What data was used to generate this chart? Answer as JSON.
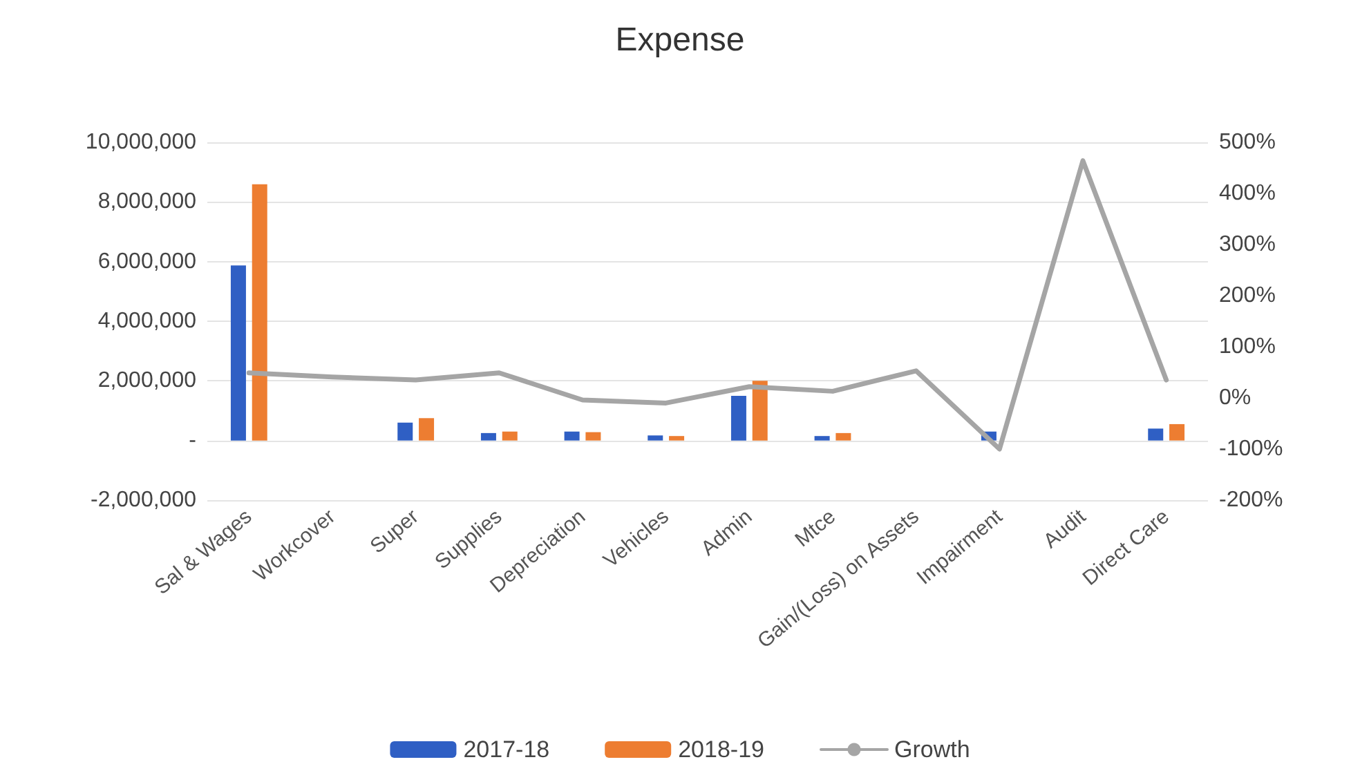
{
  "chart_data": {
    "type": "bar",
    "title": "Expense",
    "categories": [
      "Sal & Wages",
      "Workcover",
      "Super",
      "Supplies",
      "Depreciation",
      "Vehicles",
      "Admin",
      "Mtce",
      "Gain/(Loss) on Assets",
      "Impairment",
      "Audit",
      "Direct Care"
    ],
    "series": [
      {
        "name": "2017-18",
        "color": "#2f5fc4",
        "values": [
          5870000,
          0,
          600000,
          250000,
          300000,
          170000,
          1500000,
          150000,
          0,
          300000,
          0,
          400000
        ]
      },
      {
        "name": "2018-19",
        "color": "#ed7d31",
        "values": [
          8590000,
          0,
          750000,
          300000,
          280000,
          150000,
          2000000,
          250000,
          0,
          0,
          0,
          550000
        ]
      },
      {
        "name": "Growth",
        "type": "line",
        "axis": "y2",
        "color": "#a5a5a5",
        "values": [
          49,
          41,
          35,
          49,
          -4,
          -10,
          22,
          13,
          53,
          -100,
          464,
          35
        ]
      }
    ],
    "ylim": [
      -2000000,
      10000000
    ],
    "yticks": [
      {
        "value": -2000000,
        "label": "-2,000,000"
      },
      {
        "value": 0,
        "label": "-"
      },
      {
        "value": 2000000,
        "label": "2,000,000"
      },
      {
        "value": 4000000,
        "label": "4,000,000"
      },
      {
        "value": 6000000,
        "label": "6,000,000"
      },
      {
        "value": 8000000,
        "label": "8,000,000"
      },
      {
        "value": 10000000,
        "label": "10,000,000"
      }
    ],
    "y2lim": [
      -200,
      500
    ],
    "y2ticks": [
      {
        "value": -200,
        "label": "-200%"
      },
      {
        "value": -100,
        "label": "-100%"
      },
      {
        "value": 0,
        "label": "0%"
      },
      {
        "value": 100,
        "label": "100%"
      },
      {
        "value": 200,
        "label": "200%"
      },
      {
        "value": 300,
        "label": "300%"
      },
      {
        "value": 400,
        "label": "400%"
      },
      {
        "value": 500,
        "label": "500%"
      }
    ],
    "grid": "y",
    "legend": "bottom",
    "marker": "none",
    "line_style": "solid"
  }
}
